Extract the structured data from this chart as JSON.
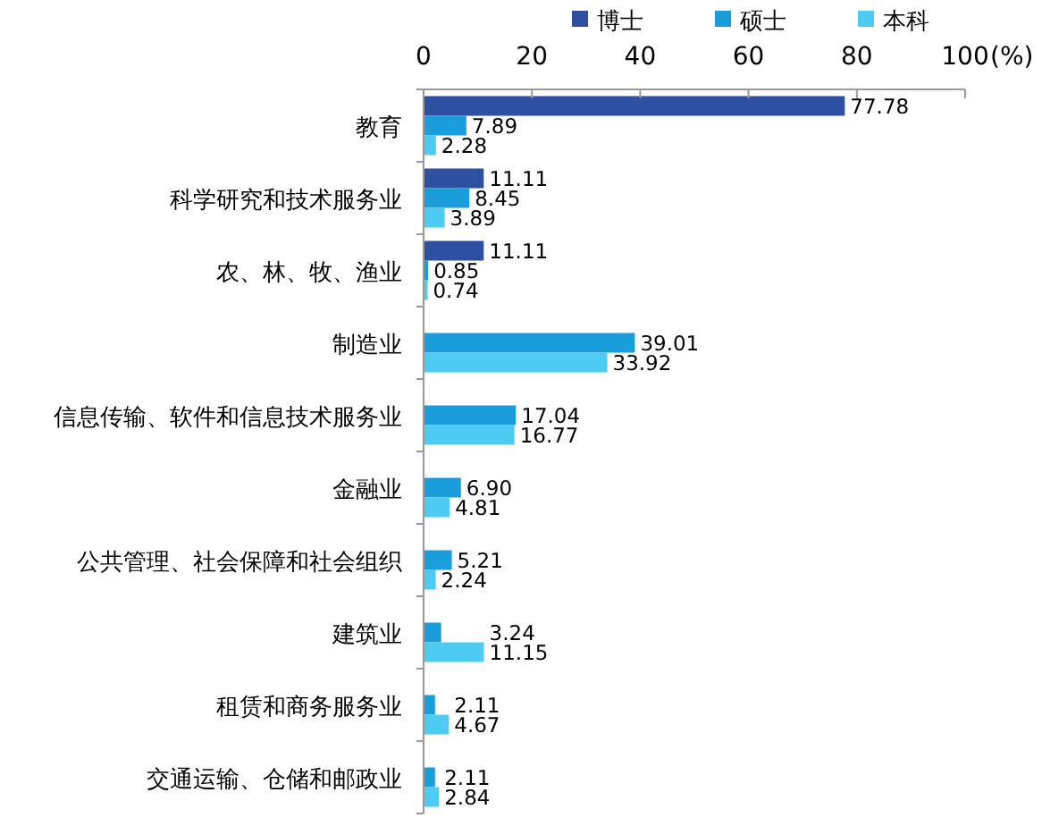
{
  "chart_data": {
    "type": "bar",
    "orientation": "horizontal",
    "xlabel": "(%)",
    "legend": "top",
    "grid": false,
    "categories": [
      "教育",
      "科学研究和技术服务业",
      "农、林、牧、渔业",
      "制造业",
      "信息传输、软件和信息技术服务业",
      "金融业",
      "公共管理、社会保障和社会组织",
      "建筑业",
      "租赁和商务服务业",
      "交通运输、仓储和邮政业"
    ],
    "xlim": [
      0,
      100
    ],
    "xticks": [
      0,
      20,
      40,
      60,
      80,
      100
    ],
    "series": [
      {
        "name": "博士",
        "color": "#2f4fa2",
        "values": [
          77.78,
          11.11,
          11.11,
          null,
          null,
          null,
          null,
          null,
          null,
          null
        ],
        "value_labels": [
          "77.78",
          "11.11",
          "11.11",
          null,
          null,
          null,
          null,
          null,
          null,
          null
        ]
      },
      {
        "name": "硕士",
        "color": "#1a9ddb",
        "values": [
          7.89,
          8.45,
          0.85,
          39.01,
          17.04,
          6.9,
          5.21,
          3.24,
          2.11,
          2.11
        ],
        "value_labels": [
          "7.89",
          "8.45",
          "0.85",
          "39.01",
          "17.04",
          "6.90",
          "5.21",
          "3.24",
          "2.11",
          "2.11"
        ]
      },
      {
        "name": "本科",
        "color": "#4dcbf2",
        "values": [
          2.28,
          3.89,
          0.74,
          33.92,
          16.77,
          4.81,
          2.24,
          11.15,
          4.67,
          2.84
        ],
        "value_labels": [
          "2.28",
          "3.89",
          "0.74",
          "33.92",
          "16.77",
          "4.81",
          "2.24",
          "11.15",
          "4.67",
          "2.84"
        ]
      }
    ]
  }
}
